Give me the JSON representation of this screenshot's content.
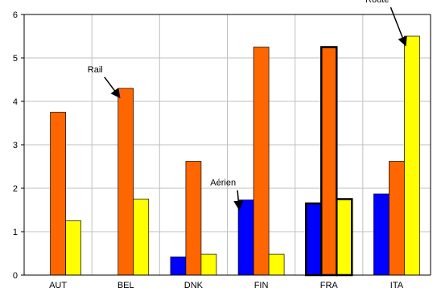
{
  "chart_data": {
    "type": "bar",
    "categories": [
      "AUT",
      "BEL",
      "DNK",
      "FIN",
      "FRA",
      "ITA"
    ],
    "series": [
      {
        "name": "Aérien",
        "color": "#0000FF",
        "values": [
          0,
          0,
          0.42,
          1.73,
          1.65,
          1.87
        ]
      },
      {
        "name": "Rail",
        "color": "#FF6600",
        "values": [
          3.75,
          4.3,
          2.62,
          5.25,
          5.25,
          2.62
        ]
      },
      {
        "name": "Route",
        "color": "#FFFF00",
        "values": [
          1.25,
          1.75,
          0.48,
          0.48,
          1.75,
          5.5
        ]
      }
    ],
    "highlighted_category": "FRA",
    "ylim": [
      0,
      6
    ],
    "yticks": [
      0,
      1,
      2,
      3,
      4,
      5,
      6
    ],
    "grid": true,
    "annotations": [
      {
        "text": "Rail",
        "category": "BEL",
        "series": "Rail"
      },
      {
        "text": "Aérien",
        "category": "FIN",
        "series": "Aérien"
      },
      {
        "text": "Route",
        "category": "ITA",
        "series": "Route"
      }
    ]
  }
}
